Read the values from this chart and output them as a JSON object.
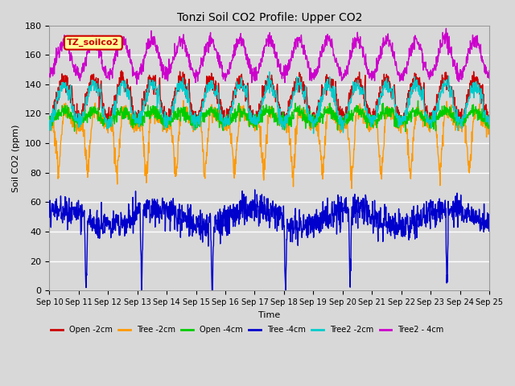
{
  "title": "Tonzi Soil CO2 Profile: Upper CO2",
  "xlabel": "Time",
  "ylabel": "Soil CO2 (ppm)",
  "ylim": [
    0,
    180
  ],
  "yticks": [
    0,
    20,
    40,
    60,
    80,
    100,
    120,
    140,
    160,
    180
  ],
  "series": [
    {
      "label": "Open -2cm",
      "color": "#cc0000"
    },
    {
      "label": "Tree -2cm",
      "color": "#ff9900"
    },
    {
      "label": "Open -4cm",
      "color": "#00cc00"
    },
    {
      "label": "Tree -4cm",
      "color": "#0000cc"
    },
    {
      "label": "Tree2 -2cm",
      "color": "#00cccc"
    },
    {
      "label": "Tree2 - 4cm",
      "color": "#cc00cc"
    }
  ],
  "annotation_text": "TZ_soilco2",
  "annotation_color": "#cc0000",
  "annotation_bg": "#ffff99",
  "background_color": "#d8d8d8",
  "grid_color": "#ffffff",
  "x_tick_labels": [
    "Sep 10",
    "Sep 11",
    "Sep 12",
    "Sep 13",
    "Sep 14",
    "Sep 15",
    "Sep 16",
    "Sep 17",
    "Sep 18",
    "Sep 19",
    "Sep 20",
    "Sep 21",
    "Sep 22",
    "Sep 23",
    "Sep 24",
    "Sep 25"
  ]
}
